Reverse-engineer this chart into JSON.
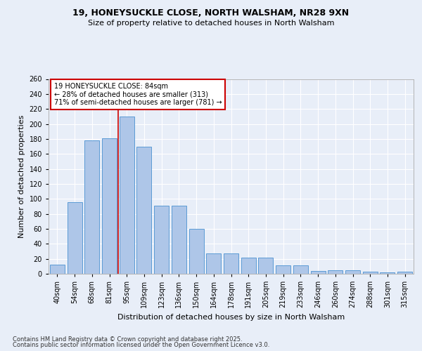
{
  "title1": "19, HONEYSUCKLE CLOSE, NORTH WALSHAM, NR28 9XN",
  "title2": "Size of property relative to detached houses in North Walsham",
  "xlabel": "Distribution of detached houses by size in North Walsham",
  "ylabel": "Number of detached properties",
  "categories": [
    "40sqm",
    "54sqm",
    "68sqm",
    "81sqm",
    "95sqm",
    "109sqm",
    "123sqm",
    "136sqm",
    "150sqm",
    "164sqm",
    "178sqm",
    "191sqm",
    "205sqm",
    "219sqm",
    "233sqm",
    "246sqm",
    "260sqm",
    "274sqm",
    "288sqm",
    "301sqm",
    "315sqm"
  ],
  "values": [
    12,
    96,
    178,
    181,
    210,
    170,
    91,
    91,
    60,
    27,
    27,
    22,
    22,
    11,
    11,
    4,
    5,
    5,
    3,
    2,
    3
  ],
  "bar_color": "#aec6e8",
  "bar_edge_color": "#5b9bd5",
  "vline_color": "#cc0000",
  "vline_x_index": 3,
  "annotation_text": "19 HONEYSUCKLE CLOSE: 84sqm\n← 28% of detached houses are smaller (313)\n71% of semi-detached houses are larger (781) →",
  "annotation_box_color": "#ffffff",
  "annotation_box_edge": "#cc0000",
  "footer1": "Contains HM Land Registry data © Crown copyright and database right 2025.",
  "footer2": "Contains public sector information licensed under the Open Government Licence v3.0.",
  "background_color": "#e8eef8",
  "ylim": [
    0,
    260
  ],
  "yticks": [
    0,
    20,
    40,
    60,
    80,
    100,
    120,
    140,
    160,
    180,
    200,
    220,
    240,
    260
  ],
  "title1_fontsize": 9,
  "title2_fontsize": 8,
  "ylabel_fontsize": 8,
  "xlabel_fontsize": 8,
  "tick_fontsize": 7,
  "annotation_fontsize": 7,
  "footer_fontsize": 6
}
